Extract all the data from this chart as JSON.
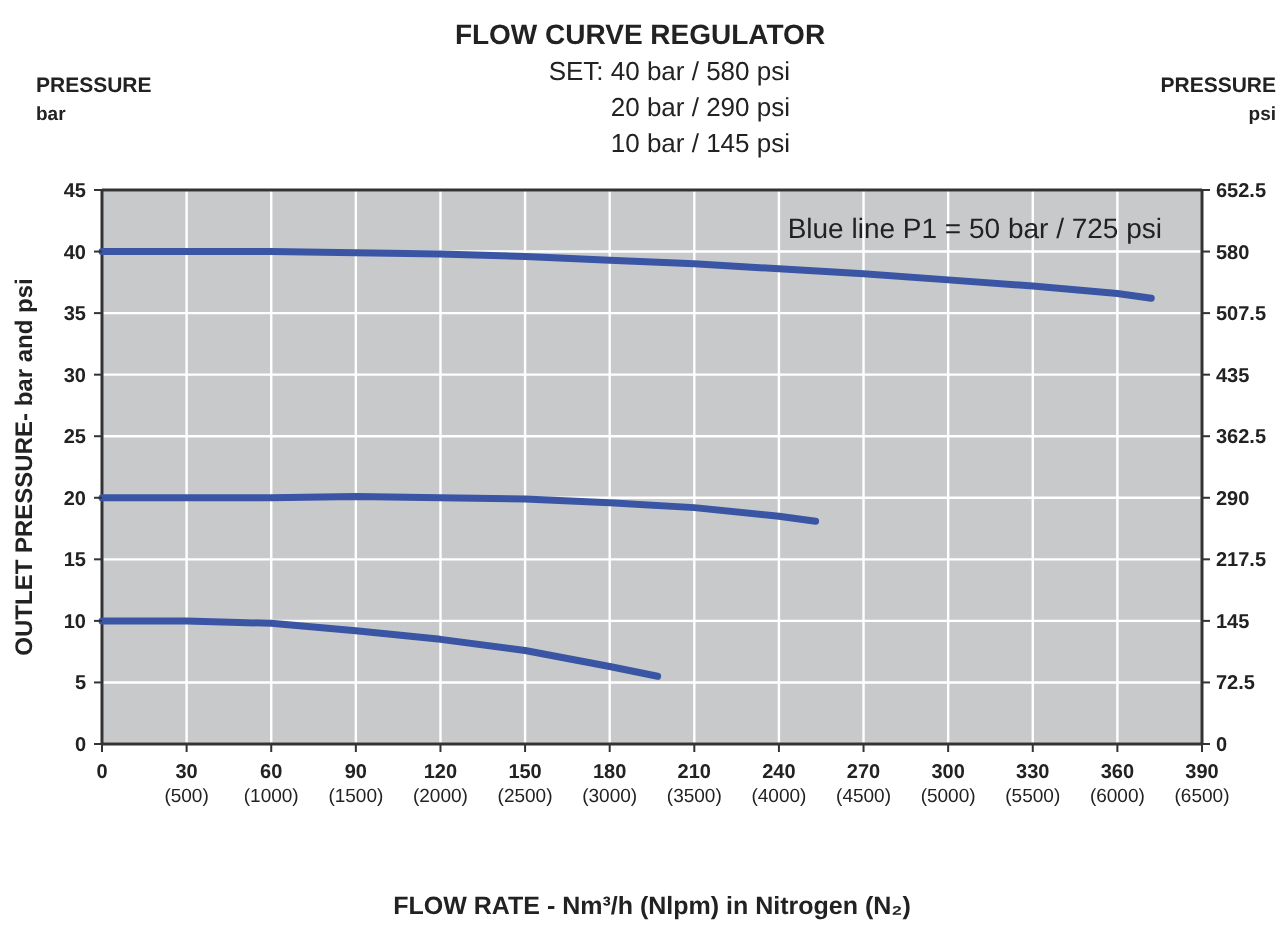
{
  "chart_data": {
    "type": "line",
    "title": "FLOW CURVE REGULATOR",
    "subtitle": "SET: 40 bar / 580 psi\n20 bar / 290 psi\n10 bar / 145 psi",
    "xlabel": "FLOW RATE - Nm³/h (Nlpm) in Nitrogen (N₂)",
    "ylabel": "OUTLET PRESSURE- bar and psi",
    "y2label": "PRESSURE\npsi",
    "annotations": [
      "Blue line P1 = 50 bar / 725 psi",
      "PRESSURE\nbar"
    ],
    "xlim": [
      0,
      390
    ],
    "xticks": [
      0,
      30,
      60,
      90,
      120,
      150,
      180,
      210,
      240,
      270,
      300,
      330,
      360,
      390
    ],
    "x2lim": [
      0,
      6500
    ],
    "x2ticks": [
      {
        "value": 500,
        "label": "(500)"
      },
      {
        "value": 1000,
        "label": "(1000)"
      },
      {
        "value": 1500,
        "label": "(1500)"
      },
      {
        "value": 2000,
        "label": "(2000)"
      },
      {
        "value": 2500,
        "label": "(2500)"
      },
      {
        "value": 3000,
        "label": "(3000)"
      },
      {
        "value": 3500,
        "label": "(3500)"
      },
      {
        "value": 4000,
        "label": "(4000)"
      },
      {
        "value": 4500,
        "label": "(4500)"
      },
      {
        "value": 5000,
        "label": "(5000)"
      },
      {
        "value": 5500,
        "label": "(5500)"
      },
      {
        "value": 6000,
        "label": "(6000)"
      },
      {
        "value": 6500,
        "label": "(6500)"
      }
    ],
    "ylim": [
      0,
      45
    ],
    "yticks": [
      0,
      5,
      10,
      15,
      20,
      25,
      30,
      35,
      40,
      45
    ],
    "y2lim": [
      0,
      652.5
    ],
    "y2ticks": [
      0,
      72.5,
      145,
      217.5,
      290,
      362.5,
      435,
      507.5,
      580,
      652.5
    ],
    "grid": true,
    "marker": "none",
    "line_style": "solid",
    "series": [
      {
        "color": "#3a55a4",
        "x": [
          0,
          30,
          60,
          90,
          120,
          150,
          180,
          210,
          240,
          270,
          300,
          330,
          360,
          372
        ],
        "values": [
          40,
          40,
          40,
          39.9,
          39.8,
          39.6,
          39.3,
          39.0,
          38.6,
          38.2,
          37.7,
          37.2,
          36.6,
          36.2
        ]
      },
      {
        "color": "#3a55a4",
        "x": [
          0,
          30,
          60,
          90,
          120,
          150,
          180,
          210,
          240,
          253
        ],
        "values": [
          20,
          20,
          20,
          20.1,
          20,
          19.9,
          19.6,
          19.2,
          18.5,
          18.1
        ]
      },
      {
        "color": "#3a55a4",
        "x": [
          0,
          30,
          60,
          90,
          120,
          150,
          180,
          197
        ],
        "values": [
          10,
          10,
          9.8,
          9.2,
          8.5,
          7.6,
          6.3,
          5.5
        ]
      }
    ]
  }
}
